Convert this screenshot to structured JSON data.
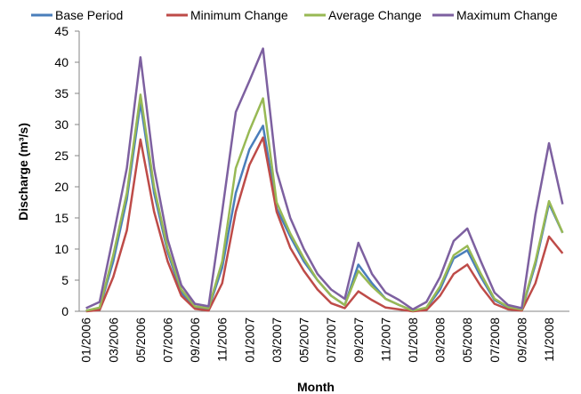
{
  "chart_data": {
    "type": "line",
    "x_label": "Month",
    "y_label": "Discharge (m³/s)",
    "categories": [
      "01/2006",
      null,
      "03/2006",
      null,
      "05/2006",
      null,
      "07/2006",
      null,
      "09/2006",
      null,
      "11/2006",
      null,
      "01/2007",
      null,
      "03/2007",
      null,
      "05/2007",
      null,
      "07/2007",
      null,
      "09/2007",
      null,
      "11/2007",
      null,
      "01/2008",
      null,
      "03/2008",
      null,
      "05/2008",
      null,
      "07/2008",
      null,
      "09/2008",
      null,
      "11/2008",
      null
    ],
    "series": [
      {
        "name": "Base Period",
        "color": "#4a7ebb",
        "values": [
          0.1,
          0.5,
          8,
          18,
          33.5,
          19,
          9.5,
          3,
          0.7,
          0.4,
          7,
          19,
          26,
          29.8,
          16.5,
          12,
          8,
          5,
          2.5,
          1,
          7.5,
          4.5,
          2,
          1,
          0.1,
          0.5,
          3.5,
          8.5,
          9.8,
          5.5,
          1.8,
          0.6,
          0.2,
          7.5,
          17.3,
          12.6
        ]
      },
      {
        "name": "Minimum Change",
        "color": "#be4b48",
        "values": [
          0,
          0.2,
          5.5,
          13,
          27.6,
          16,
          8,
          2.5,
          0.4,
          0.1,
          4.5,
          16,
          23.5,
          27.9,
          16,
          10.2,
          6.5,
          3.5,
          1.3,
          0.5,
          3.2,
          1.8,
          0.6,
          0.3,
          0,
          0.2,
          2.5,
          6,
          7.5,
          4,
          1.2,
          0.3,
          0.1,
          4.5,
          12,
          9.3
        ]
      },
      {
        "name": "Average Change",
        "color": "#98b954",
        "values": [
          0.1,
          0.6,
          9,
          19,
          34.8,
          20,
          10,
          3.5,
          0.8,
          0.5,
          8,
          23,
          29,
          34.2,
          17.5,
          12.5,
          8.5,
          5,
          2.5,
          1,
          6.5,
          4,
          2,
          1,
          0.1,
          0.6,
          4,
          9,
          10.5,
          6,
          2,
          0.7,
          0.3,
          8,
          17.7,
          12.6
        ]
      },
      {
        "name": "Maximum Change",
        "color": "#7d60a0",
        "values": [
          0.5,
          1.5,
          12,
          23,
          40.8,
          23,
          11.5,
          4.2,
          1.2,
          0.8,
          16,
          32,
          37,
          42.2,
          22.5,
          15,
          10,
          6,
          3.5,
          2,
          11,
          6,
          3,
          1.8,
          0.3,
          1.5,
          5.5,
          11.3,
          13.3,
          8,
          3,
          1,
          0.5,
          15.5,
          27,
          17.2
        ]
      }
    ],
    "ylim": [
      0,
      45
    ],
    "yticks": [
      0,
      5,
      10,
      15,
      20,
      25,
      30,
      35,
      40,
      45
    ],
    "grid": false,
    "legend": "top"
  }
}
